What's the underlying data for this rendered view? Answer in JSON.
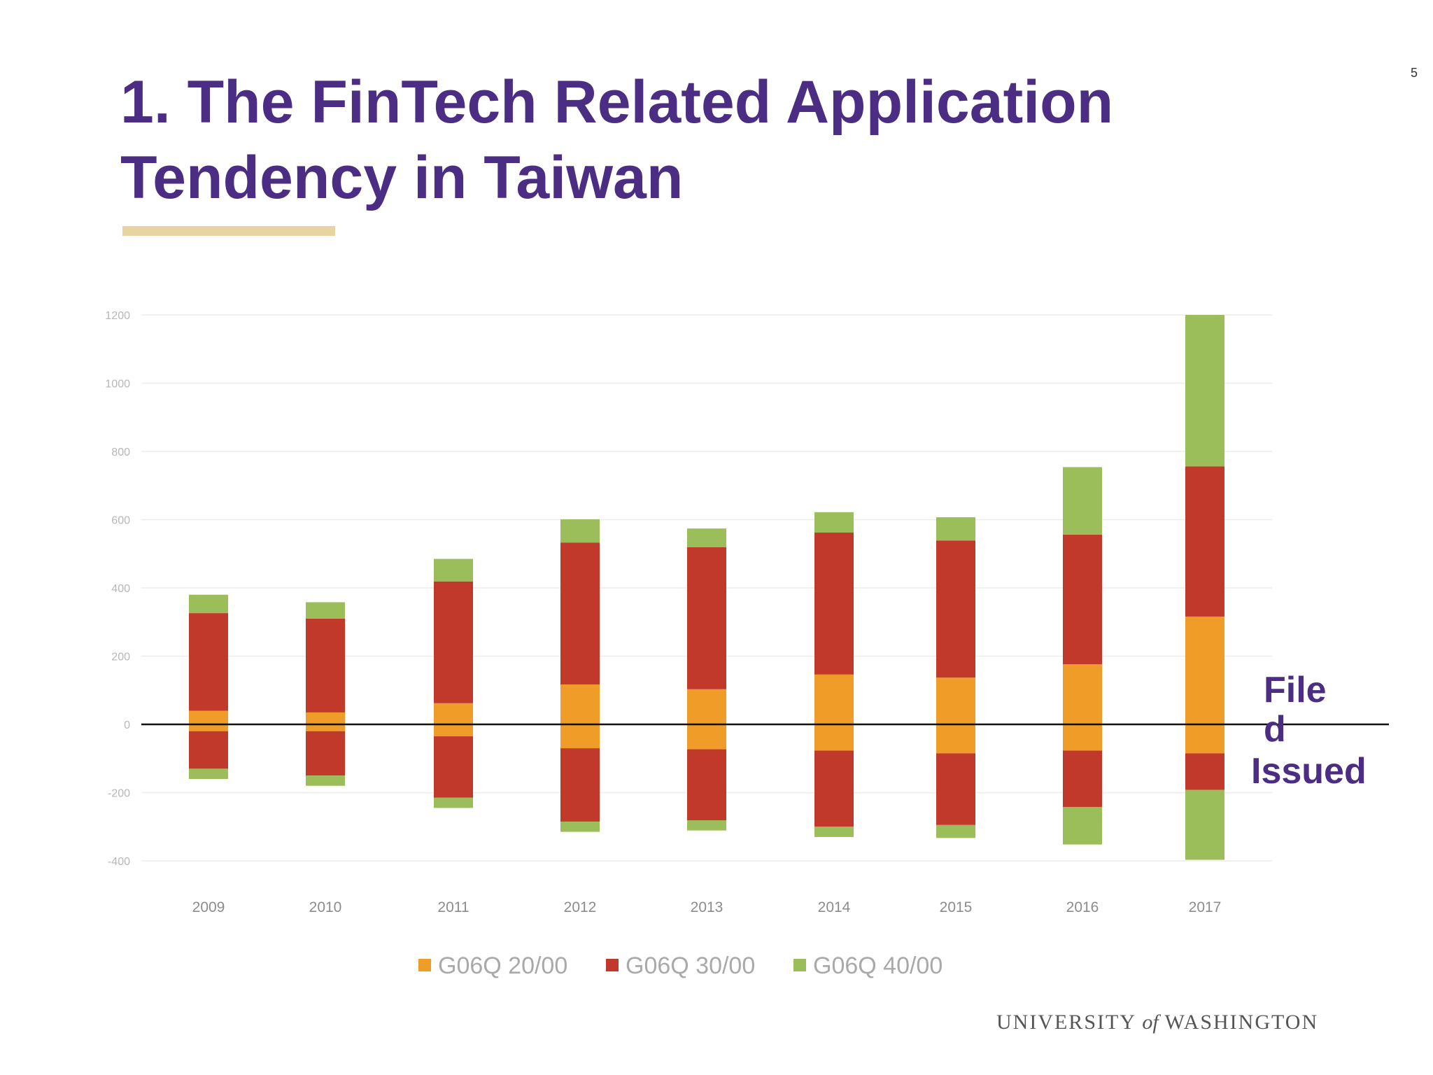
{
  "slide": {
    "title": "1. The FinTech Related Application Tendency in Taiwan",
    "page_number": "5",
    "label_filed": "Filed",
    "label_issued": "Issued",
    "footer_logo_text": "UNIVERSITY of WASHINGTON"
  },
  "colors": {
    "title": "#4b2e83",
    "accent_bar": "#e8d3a2",
    "G06Q 20/00": "#f09c28",
    "G06Q 30/00": "#c0392b",
    "G06Q 40/00": "#9bbd5a"
  },
  "chart_data": {
    "type": "bar",
    "stacked": true,
    "diverging": true,
    "categories": [
      "2009",
      "2010",
      "2011",
      "2012",
      "2013",
      "2014",
      "2015",
      "2016",
      "2017"
    ],
    "ylim": [
      -400,
      1200
    ],
    "yticks": [
      1200,
      1000,
      800,
      600,
      400,
      200,
      0,
      -200,
      -400
    ],
    "grid": true,
    "legend_position": "bottom",
    "series": [
      {
        "name": "G06Q 20/00",
        "color": "#f09c28",
        "filed": [
          40,
          35,
          62,
          117,
          103,
          146,
          137,
          176,
          316
        ],
        "issued": [
          -20,
          -20,
          -35,
          -70,
          -73,
          -77,
          -85,
          -77,
          -85
        ]
      },
      {
        "name": "G06Q 30/00",
        "color": "#c0392b",
        "filed": [
          286,
          275,
          357,
          416,
          416,
          416,
          402,
          380,
          440
        ],
        "issued": [
          -110,
          -130,
          -180,
          -215,
          -208,
          -223,
          -210,
          -165,
          -107
        ]
      },
      {
        "name": "G06Q 40/00",
        "color": "#9bbd5a",
        "filed": [
          54,
          48,
          66,
          68,
          55,
          60,
          68,
          198,
          444
        ],
        "issued": [
          -30,
          -30,
          -30,
          -30,
          -30,
          -30,
          -38,
          -110,
          -205
        ]
      }
    ]
  }
}
